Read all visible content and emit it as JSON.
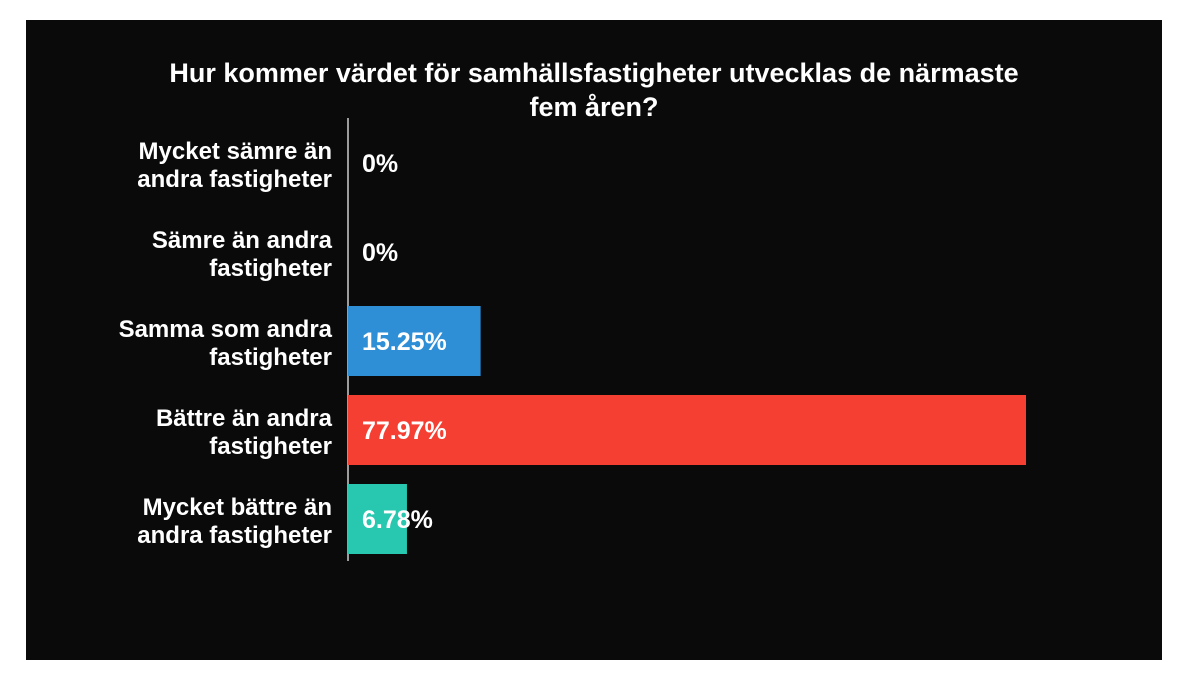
{
  "chart_data": {
    "type": "bar",
    "orientation": "horizontal",
    "title_lines": [
      "Hur kommer värdet för samhällsfastigheter utvecklas de närmaste",
      "fem åren?"
    ],
    "categories": [
      [
        "Mycket sämre än",
        "andra fastigheter"
      ],
      [
        "Sämre än andra",
        "fastigheter"
      ],
      [
        "Samma som andra",
        "fastigheter"
      ],
      [
        "Bättre än andra",
        "fastigheter"
      ],
      [
        "Mycket bättre än",
        "andra fastigheter"
      ]
    ],
    "values": [
      0,
      0,
      15.25,
      77.97,
      6.78
    ],
    "value_labels": [
      "0%",
      "0%",
      "15.25%",
      "77.97%",
      "6.78%"
    ],
    "bar_colors": [
      "#2e8fd6",
      "#2e8fd6",
      "#2e8fd6",
      "#f53f32",
      "#27c7b0"
    ],
    "xlim": [
      0,
      77.97
    ],
    "xlabel": "",
    "ylabel": "",
    "grid": false,
    "legend": "none"
  },
  "colors": {
    "background": "#0a0a0a",
    "text": "#ffffff",
    "axis": "#cccccc"
  }
}
